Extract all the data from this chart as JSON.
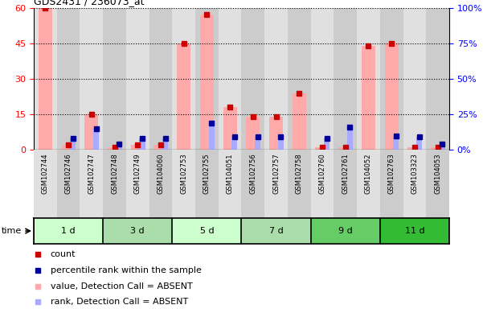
{
  "title": "GDS2431 / 236073_at",
  "samples": [
    "GSM102744",
    "GSM102746",
    "GSM102747",
    "GSM102748",
    "GSM102749",
    "GSM104060",
    "GSM102753",
    "GSM102755",
    "GSM104051",
    "GSM102756",
    "GSM102757",
    "GSM102758",
    "GSM102760",
    "GSM102761",
    "GSM104052",
    "GSM102763",
    "GSM103323",
    "GSM104053"
  ],
  "absent_value": [
    60,
    2,
    15,
    1,
    2,
    2,
    45,
    57,
    18,
    14,
    14,
    24,
    1,
    1,
    44,
    45,
    1,
    1
  ],
  "absent_rank": [
    0,
    8,
    15,
    4,
    8,
    8,
    0,
    19,
    9,
    9,
    9,
    0,
    8,
    16,
    0,
    10,
    9,
    4
  ],
  "count_values": [
    60,
    2,
    15,
    1,
    2,
    2,
    45,
    57,
    18,
    14,
    14,
    24,
    1,
    1,
    44,
    45,
    1,
    1
  ],
  "rank_values": [
    0,
    8,
    15,
    4,
    8,
    8,
    0,
    19,
    9,
    9,
    9,
    0,
    8,
    16,
    0,
    10,
    9,
    4
  ],
  "time_groups": [
    {
      "label": "1 d",
      "start": 0,
      "end": 3,
      "color": "#ccffcc"
    },
    {
      "label": "3 d",
      "start": 3,
      "end": 6,
      "color": "#aaddaa"
    },
    {
      "label": "5 d",
      "start": 6,
      "end": 9,
      "color": "#ccffcc"
    },
    {
      "label": "7 d",
      "start": 9,
      "end": 12,
      "color": "#aaddaa"
    },
    {
      "label": "9 d",
      "start": 12,
      "end": 15,
      "color": "#66cc66"
    },
    {
      "label": "11 d",
      "start": 15,
      "end": 18,
      "color": "#33bb33"
    }
  ],
  "ylim_left": [
    0,
    60
  ],
  "ylim_right": [
    0,
    100
  ],
  "yticks_left": [
    0,
    15,
    30,
    45,
    60
  ],
  "yticks_right": [
    0,
    25,
    50,
    75,
    100
  ],
  "ytick_labels_right": [
    "0%",
    "25%",
    "50%",
    "75%",
    "100%"
  ],
  "bar_color_absent_value": "#ffaaaa",
  "bar_color_absent_rank": "#aaaaff",
  "bar_color_count": "#cc0000",
  "bar_color_rank": "#000099",
  "col_bg_even": "#e0e0e0",
  "col_bg_odd": "#cccccc",
  "legend_items": [
    {
      "color": "#cc0000",
      "label": "count",
      "marker": "s"
    },
    {
      "color": "#000099",
      "label": "percentile rank within the sample",
      "marker": "s"
    },
    {
      "color": "#ffaaaa",
      "label": "value, Detection Call = ABSENT",
      "marker": "s"
    },
    {
      "color": "#aaaaff",
      "label": "rank, Detection Call = ABSENT",
      "marker": "s"
    }
  ]
}
